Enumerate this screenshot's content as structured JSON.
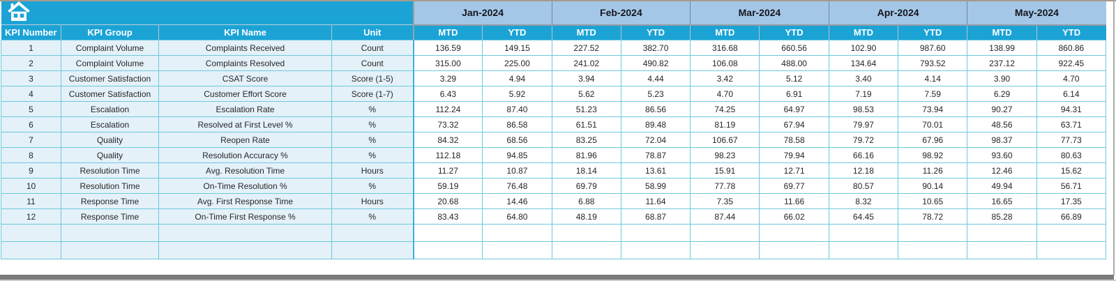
{
  "columns": {
    "kpi_number": "KPI Number",
    "kpi_group": "KPI Group",
    "kpi_name": "KPI Name",
    "unit": "Unit"
  },
  "subheaders": {
    "mtd": "MTD",
    "ytd": "YTD"
  },
  "months": [
    "Jan-2024",
    "Feb-2024",
    "Mar-2024",
    "Apr-2024",
    "May-2024"
  ],
  "rows": [
    {
      "number": "1",
      "group": "Complaint Volume",
      "name": "Complaints Received",
      "unit": "Count",
      "values": [
        "136.59",
        "149.15",
        "227.52",
        "382.70",
        "316.68",
        "660.56",
        "102.90",
        "987.60",
        "138.99",
        "860.86"
      ]
    },
    {
      "number": "2",
      "group": "Complaint Volume",
      "name": "Complaints Resolved",
      "unit": "Count",
      "values": [
        "315.00",
        "225.00",
        "241.02",
        "490.82",
        "106.08",
        "488.00",
        "134.64",
        "793.52",
        "237.12",
        "922.45"
      ]
    },
    {
      "number": "3",
      "group": "Customer Satisfaction",
      "name": "CSAT Score",
      "unit": "Score (1-5)",
      "values": [
        "3.29",
        "4.94",
        "3.94",
        "4.44",
        "3.42",
        "5.12",
        "3.40",
        "4.14",
        "3.90",
        "4.70"
      ]
    },
    {
      "number": "4",
      "group": "Customer Satisfaction",
      "name": "Customer Effort Score",
      "unit": "Score (1-7)",
      "values": [
        "6.43",
        "5.92",
        "5.62",
        "5.23",
        "4.70",
        "6.91",
        "7.19",
        "7.59",
        "6.29",
        "6.14"
      ]
    },
    {
      "number": "5",
      "group": "Escalation",
      "name": "Escalation Rate",
      "unit": "%",
      "values": [
        "112.24",
        "87.40",
        "51.23",
        "86.56",
        "74.25",
        "64.97",
        "98.53",
        "73.94",
        "90.27",
        "94.31"
      ]
    },
    {
      "number": "6",
      "group": "Escalation",
      "name": "Resolved at First Level %",
      "unit": "%",
      "values": [
        "73.32",
        "86.58",
        "61.51",
        "89.48",
        "81.19",
        "67.94",
        "79.97",
        "70.01",
        "48.56",
        "63.71"
      ]
    },
    {
      "number": "7",
      "group": "Quality",
      "name": "Reopen Rate",
      "unit": "%",
      "values": [
        "84.32",
        "68.56",
        "83.25",
        "72.04",
        "106.67",
        "78.58",
        "79.72",
        "67.96",
        "98.37",
        "77.73"
      ]
    },
    {
      "number": "8",
      "group": "Quality",
      "name": "Resolution Accuracy %",
      "unit": "%",
      "values": [
        "112.18",
        "94.85",
        "81.96",
        "78.87",
        "98.23",
        "79.94",
        "66.16",
        "98.92",
        "93.60",
        "80.63"
      ]
    },
    {
      "number": "9",
      "group": "Resolution Time",
      "name": "Avg. Resolution Time",
      "unit": "Hours",
      "values": [
        "11.27",
        "10.87",
        "18.14",
        "13.61",
        "15.91",
        "12.71",
        "12.18",
        "11.26",
        "12.46",
        "15.62"
      ]
    },
    {
      "number": "10",
      "group": "Resolution Time",
      "name": "On-Time Resolution %",
      "unit": "%",
      "values": [
        "59.19",
        "76.48",
        "69.79",
        "58.99",
        "77.78",
        "69.77",
        "80.57",
        "90.14",
        "49.94",
        "56.71"
      ]
    },
    {
      "number": "11",
      "group": "Response Time",
      "name": "Avg. First Response Time",
      "unit": "Hours",
      "values": [
        "20.68",
        "14.46",
        "6.88",
        "11.64",
        "7.35",
        "11.66",
        "8.32",
        "10.65",
        "16.65",
        "17.35"
      ]
    },
    {
      "number": "12",
      "group": "Response Time",
      "name": "On-Time First Response %",
      "unit": "%",
      "values": [
        "83.43",
        "64.80",
        "48.19",
        "68.87",
        "87.44",
        "66.02",
        "64.45",
        "78.72",
        "85.28",
        "66.89"
      ]
    }
  ],
  "empty_row_count": 2,
  "colors": {
    "header_teal": "#1ba3d6",
    "month_blue": "#a4c7e7",
    "row_blue": "#e4f1f9",
    "border_teal": "#6ec8dc",
    "text_dark": "#262626"
  }
}
